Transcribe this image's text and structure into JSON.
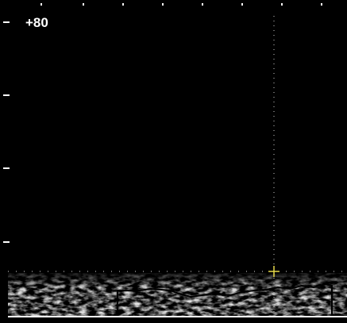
{
  "label": "+80"
}
